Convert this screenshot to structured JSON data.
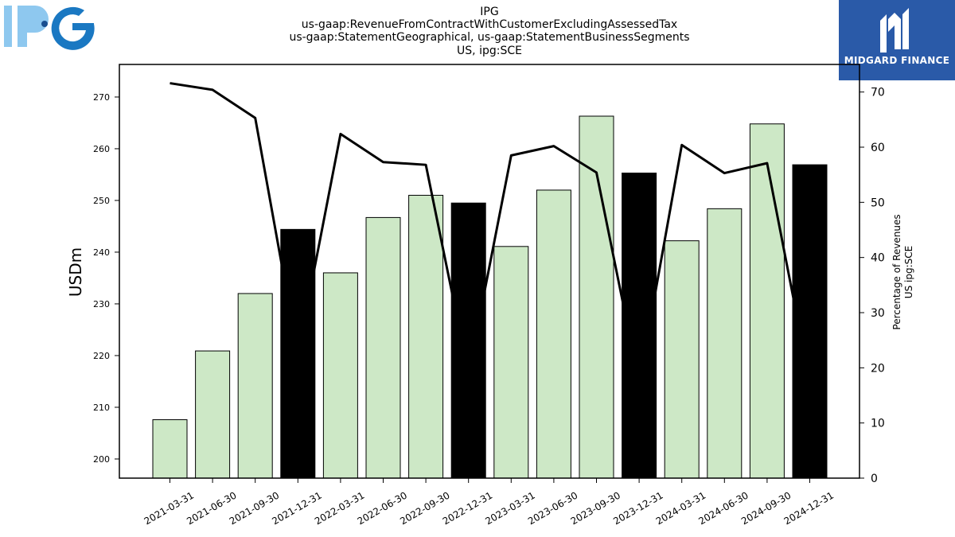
{
  "header": {
    "logo_text": "IPG",
    "title_lines": [
      "IPG",
      "us-gaap:RevenueFromContractWithCustomerExcludingAssessedTax",
      "us-gaap:StatementGeographical, us-gaap:StatementBusinessSegments",
      "US, ipg:SCE"
    ]
  },
  "brand": {
    "name": "MIDGARD FINANCE"
  },
  "chart_data": {
    "type": "bar",
    "categories": [
      "2021-03-31",
      "2021-06-30",
      "2021-09-30",
      "2021-12-31",
      "2022-03-31",
      "2022-06-30",
      "2022-09-30",
      "2022-12-31",
      "2023-03-31",
      "2023-06-30",
      "2023-09-30",
      "2023-12-31",
      "2024-03-31",
      "2024-06-30",
      "2024-09-30",
      "2024-12-31"
    ],
    "series": [
      {
        "axis": "left",
        "type": "bar",
        "values": [
          207.6,
          220.9,
          232.0,
          244.4,
          236.0,
          246.7,
          251.0,
          249.5,
          241.1,
          252.0,
          266.3,
          255.3,
          242.2,
          248.4,
          264.8,
          256.9
        ],
        "highlight": [
          false,
          false,
          false,
          true,
          false,
          false,
          false,
          true,
          false,
          false,
          false,
          true,
          false,
          false,
          false,
          true
        ]
      },
      {
        "axis": "right",
        "type": "line",
        "values": [
          71.6,
          70.4,
          65.3,
          22.5,
          62.4,
          57.3,
          56.8,
          19.0,
          58.5,
          60.2,
          55.4,
          17.3,
          60.4,
          55.3,
          57.1,
          17.4
        ]
      }
    ],
    "ylabel": "USDm",
    "ylabel_right": [
      "Percentage of Revenues",
      "US ipg:SCE"
    ],
    "ylim": [
      196.3,
      276.3
    ],
    "ylim_right": [
      0,
      75
    ],
    "yticks": [
      200,
      210,
      220,
      230,
      240,
      250,
      260,
      270
    ],
    "yticks_right": [
      0,
      10,
      20,
      30,
      40,
      50,
      60,
      70
    ],
    "colors": {
      "bar": "#cde8c6",
      "bar_highlight": "#000000",
      "line": "#000000",
      "logo_light": "#8ec8ef",
      "logo_dark": "#1a78c2",
      "brand_bg": "#2a5aa8"
    },
    "grid": false,
    "legend": "none"
  }
}
